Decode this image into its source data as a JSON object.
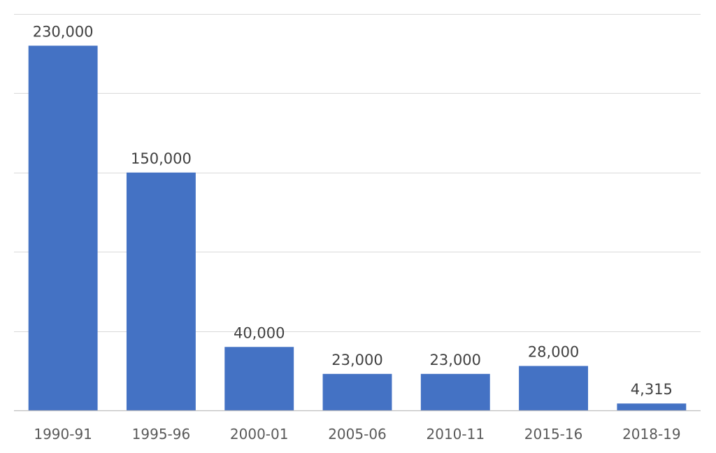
{
  "chart_data": {
    "type": "bar",
    "title": "",
    "xlabel": "",
    "ylabel": "",
    "categories": [
      "1990-91",
      "1995-96",
      "2000-01",
      "2005-06",
      "2010-11",
      "2015-16",
      "2018-19"
    ],
    "values": [
      230000,
      150000,
      40000,
      23000,
      23000,
      28000,
      4315
    ],
    "value_labels": [
      "230,000",
      "150,000",
      "40,000",
      "23,000",
      "23,000",
      "28,000",
      "4,315"
    ],
    "ylim": [
      0,
      250000
    ],
    "ytick_step": 50000,
    "grid": true,
    "legend": "none",
    "bar_color": "#4472C4"
  }
}
